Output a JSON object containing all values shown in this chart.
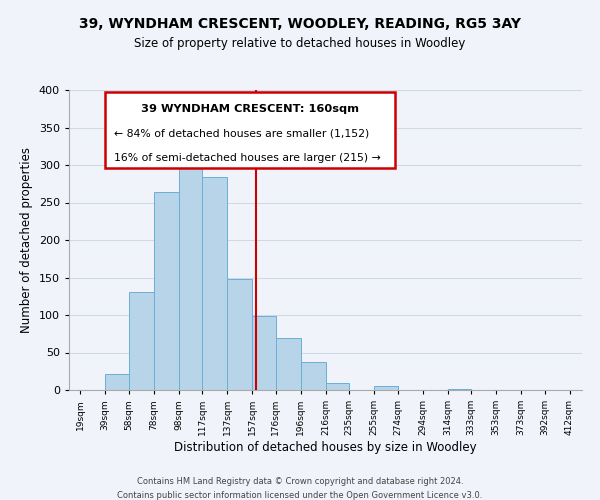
{
  "title": "39, WYNDHAM CRESCENT, WOODLEY, READING, RG5 3AY",
  "subtitle": "Size of property relative to detached houses in Woodley",
  "xlabel": "Distribution of detached houses by size in Woodley",
  "ylabel": "Number of detached properties",
  "bar_left_edges": [
    19,
    39,
    58,
    78,
    98,
    117,
    137,
    157,
    176,
    196,
    216,
    235,
    255,
    274,
    294,
    314,
    333,
    353,
    373,
    392
  ],
  "bar_widths": [
    20,
    19,
    20,
    20,
    19,
    20,
    20,
    19,
    20,
    20,
    19,
    20,
    19,
    20,
    20,
    19,
    20,
    20,
    19,
    20
  ],
  "bar_heights": [
    0,
    22,
    131,
    264,
    298,
    284,
    148,
    99,
    69,
    38,
    9,
    0,
    5,
    0,
    0,
    2,
    0,
    0,
    0,
    0
  ],
  "bar_color": "#b8d4e8",
  "bar_edgecolor": "#6aaed6",
  "vline_x": 160,
  "vline_color": "#cc0000",
  "annotation_text_line1": "39 WYNDHAM CRESCENT: 160sqm",
  "annotation_text_line2": "← 84% of detached houses are smaller (1,152)",
  "annotation_text_line3": "16% of semi-detached houses are larger (215) →",
  "xtick_labels": [
    "19sqm",
    "39sqm",
    "58sqm",
    "78sqm",
    "98sqm",
    "117sqm",
    "137sqm",
    "157sqm",
    "176sqm",
    "196sqm",
    "216sqm",
    "235sqm",
    "255sqm",
    "274sqm",
    "294sqm",
    "314sqm",
    "333sqm",
    "353sqm",
    "373sqm",
    "392sqm",
    "412sqm"
  ],
  "xtick_positions": [
    19,
    39,
    58,
    78,
    98,
    117,
    137,
    157,
    176,
    196,
    216,
    235,
    255,
    274,
    294,
    314,
    333,
    353,
    373,
    392,
    412
  ],
  "ylim": [
    0,
    400
  ],
  "xlim": [
    10,
    422
  ],
  "yticks": [
    0,
    50,
    100,
    150,
    200,
    250,
    300,
    350,
    400
  ],
  "grid_color": "#d0d8e8",
  "background_color": "#f0f4fa",
  "footer_line1": "Contains HM Land Registry data © Crown copyright and database right 2024.",
  "footer_line2": "Contains public sector information licensed under the Open Government Licence v3.0.",
  "box_edgecolor": "#cc0000",
  "box_facecolor": "#ffffff"
}
